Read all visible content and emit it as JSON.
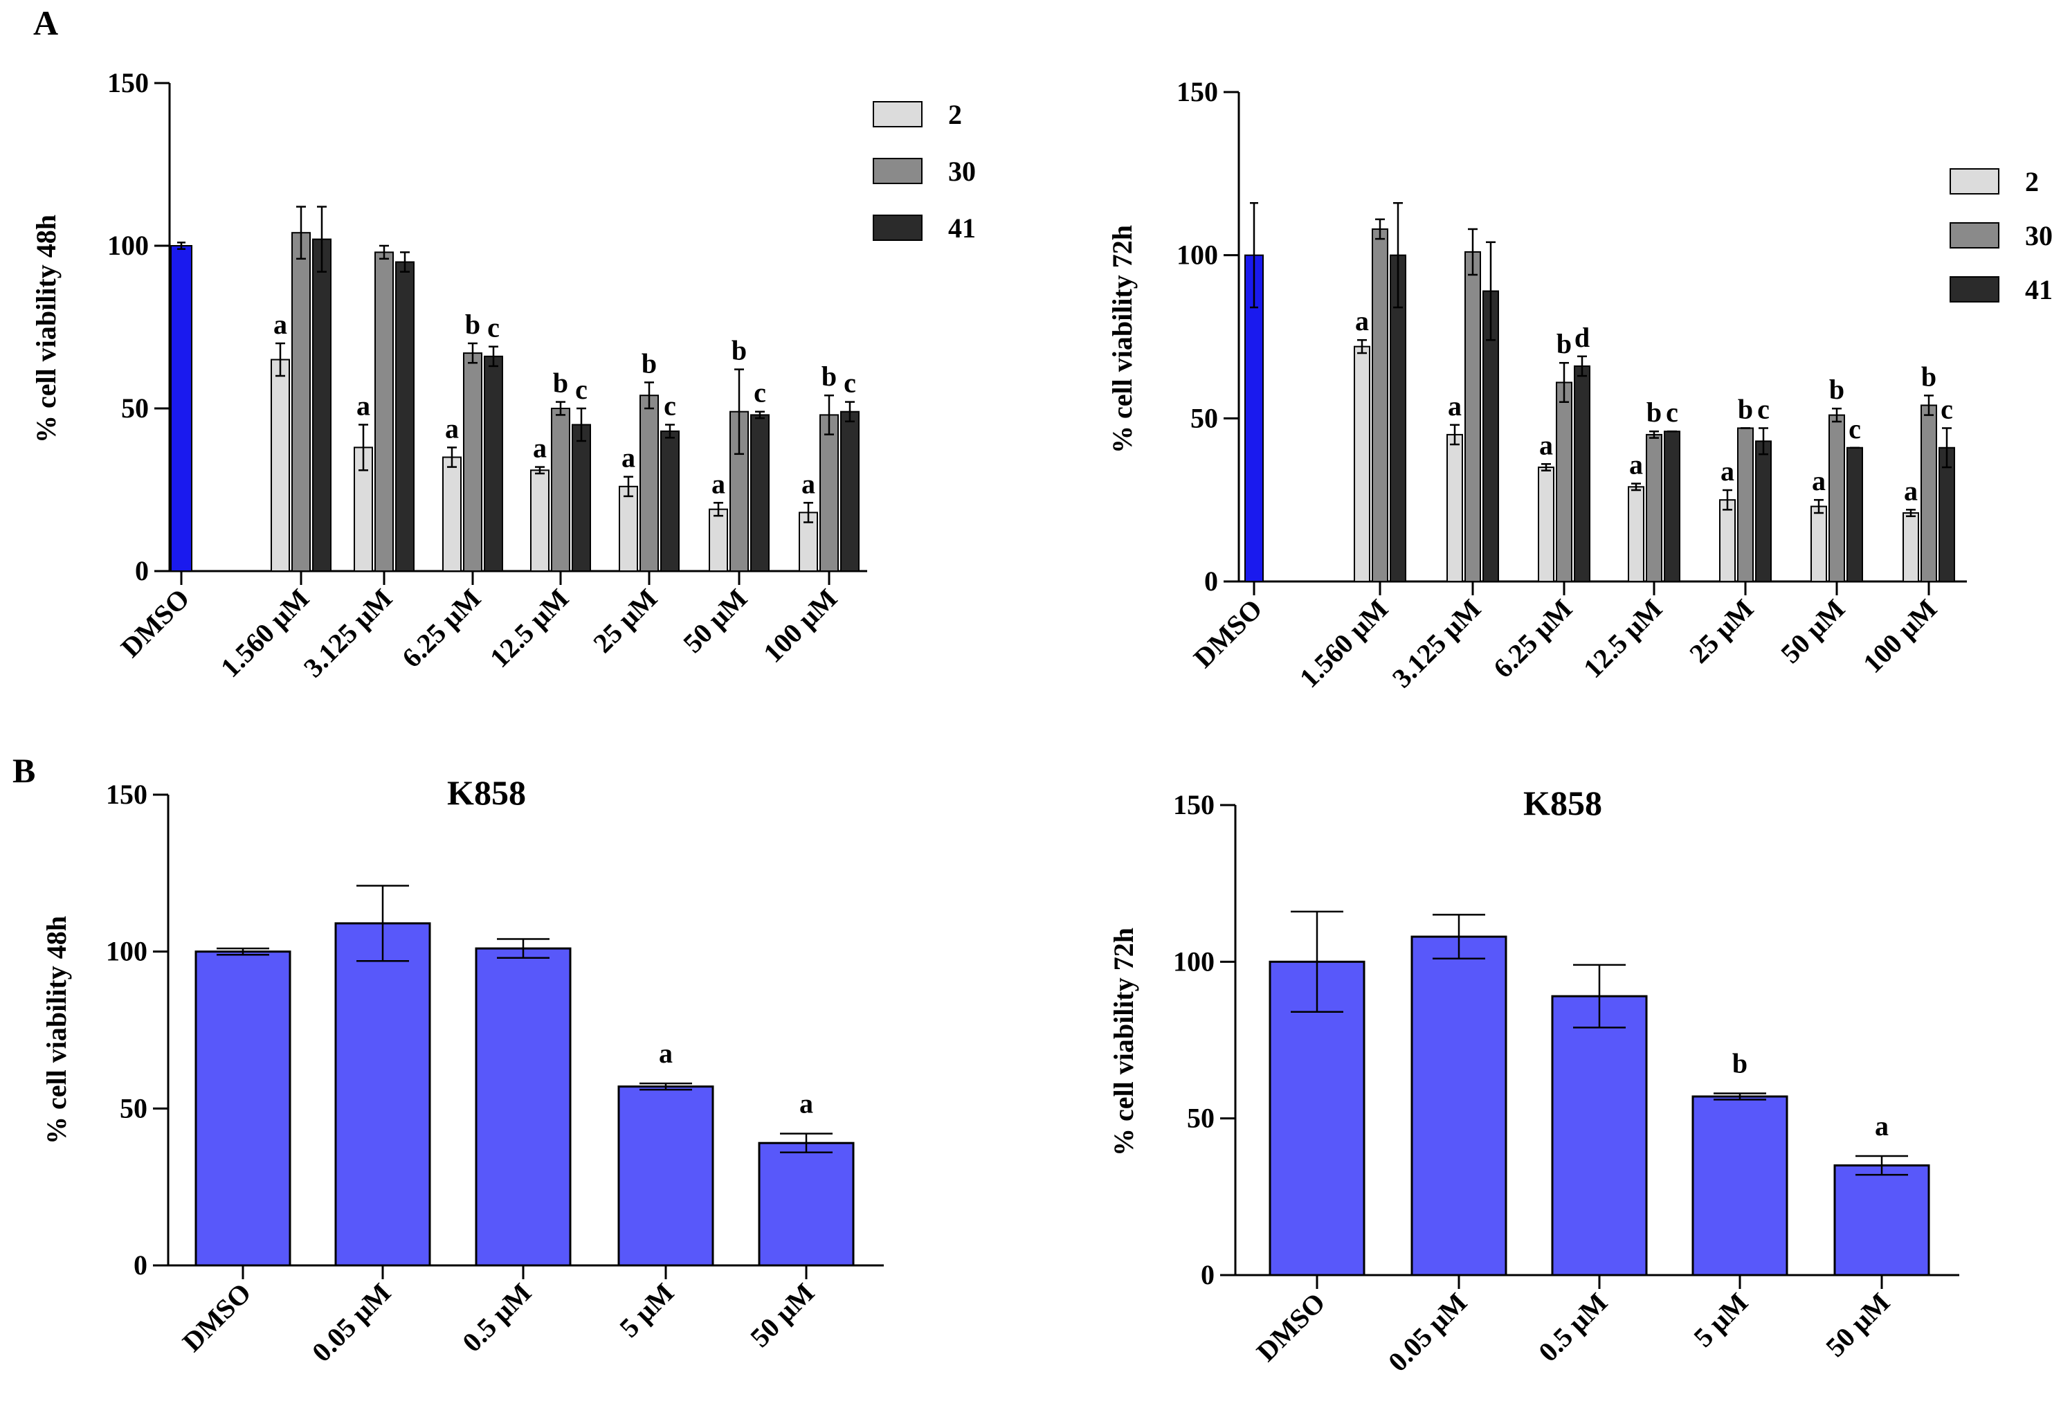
{
  "panel_labels": [
    "A",
    "B"
  ],
  "colors": {
    "dmso_blue": "#1a1aee",
    "k858_blue": "#5858fa",
    "light": "#dcdcdc",
    "medium": "#8a8a8a",
    "dark": "#2b2b2b",
    "axis": "#000000"
  },
  "chart_data": [
    {
      "type": "bar",
      "panel": "A",
      "ylabel": "% cell viability 48h",
      "ylim": [
        0,
        150
      ],
      "yticks": [
        "0",
        "50",
        "100",
        "150"
      ],
      "categories": [
        "DMSO",
        "1.560 µM",
        "3.125 µM",
        "6.25 µM",
        "12.5 µM",
        "25 µM",
        "50 µM",
        "100 µM"
      ],
      "control": {
        "name": "DMSO",
        "value": 100,
        "error": 1,
        "color": "#1a1aee"
      },
      "legend": {
        "position": "top-right",
        "entries": [
          "2",
          "30",
          "41"
        ]
      },
      "series": [
        {
          "name": "2",
          "color": "#dcdcdc",
          "values": [
            null,
            65,
            38,
            35,
            31,
            26,
            19,
            18
          ],
          "errors": [
            null,
            5,
            7,
            3,
            1,
            3,
            2,
            3
          ],
          "labels": [
            null,
            "a",
            "a",
            "a",
            "a",
            "a",
            "a",
            "a"
          ]
        },
        {
          "name": "30",
          "color": "#8a8a8a",
          "values": [
            null,
            104,
            98,
            67,
            50,
            54,
            49,
            48
          ],
          "errors": [
            null,
            8,
            2,
            3,
            2,
            4,
            13,
            6
          ],
          "labels": [
            null,
            "",
            "",
            "b",
            "b",
            "b",
            "b",
            "b"
          ]
        },
        {
          "name": "41",
          "color": "#2b2b2b",
          "values": [
            null,
            102,
            95,
            66,
            45,
            43,
            48,
            49
          ],
          "errors": [
            null,
            10,
            3,
            3,
            5,
            2,
            1,
            3
          ],
          "labels": [
            null,
            "",
            "",
            "c",
            "c",
            "c",
            "c",
            "c"
          ]
        }
      ]
    },
    {
      "type": "bar",
      "panel": "A",
      "ylabel": "% cell viability 72h",
      "ylim": [
        0,
        150
      ],
      "yticks": [
        "0",
        "50",
        "100",
        "150"
      ],
      "categories": [
        "DMSO",
        "1.560 µM",
        "3.125 µM",
        "6.25 µM",
        "12.5 µM",
        "25 µM",
        "50 µM",
        "100 µM"
      ],
      "control": {
        "name": "DMSO",
        "value": 100,
        "error": 16,
        "color": "#1a1aee"
      },
      "legend": {
        "position": "top-right",
        "entries": [
          "2",
          "30",
          "41"
        ]
      },
      "series": [
        {
          "name": "2",
          "color": "#dcdcdc",
          "values": [
            null,
            72,
            45,
            35,
            29,
            25,
            23,
            21
          ],
          "errors": [
            null,
            2,
            3,
            1,
            1,
            3,
            2,
            1
          ],
          "labels": [
            null,
            "a",
            "a",
            "a",
            "a",
            "a",
            "a",
            "a"
          ]
        },
        {
          "name": "30",
          "color": "#8a8a8a",
          "values": [
            null,
            108,
            101,
            61,
            45,
            47,
            51,
            54
          ],
          "errors": [
            null,
            3,
            7,
            6,
            1,
            0,
            2,
            3
          ],
          "labels": [
            null,
            "",
            "",
            "b",
            "b",
            "b",
            "b",
            "b"
          ]
        },
        {
          "name": "41",
          "color": "#2b2b2b",
          "values": [
            null,
            100,
            89,
            66,
            46,
            43,
            41,
            41
          ],
          "errors": [
            null,
            16,
            15,
            3,
            0,
            4,
            0,
            6
          ],
          "labels": [
            null,
            "",
            "",
            "d",
            "c",
            "c",
            "c",
            "c"
          ]
        }
      ]
    },
    {
      "type": "bar",
      "panel": "B",
      "title": "K858",
      "ylabel": "% cell viability 48h",
      "ylim": [
        0,
        150
      ],
      "yticks": [
        "0",
        "50",
        "100",
        "150"
      ],
      "categories": [
        "DMSO",
        "0.05 µM",
        "0.5 µM",
        "5 µM",
        "50 µM"
      ],
      "values": [
        100,
        109,
        101,
        57,
        39
      ],
      "errors": [
        1,
        12,
        3,
        1,
        3
      ],
      "labels": [
        "",
        "",
        "",
        "a",
        "a"
      ],
      "color": "#5858fa"
    },
    {
      "type": "bar",
      "panel": "B",
      "title": "K858",
      "ylabel": "% cell viability 72h",
      "ylim": [
        0,
        150
      ],
      "yticks": [
        "0",
        "50",
        "100",
        "150"
      ],
      "categories": [
        "DMSO",
        "0.05 µM",
        "0.5 µM",
        "5 µM",
        "50 µM"
      ],
      "values": [
        100,
        108,
        89,
        57,
        35
      ],
      "errors": [
        16,
        7,
        10,
        1,
        3
      ],
      "labels": [
        "",
        "",
        "",
        "b",
        "a"
      ],
      "color": "#5858fa"
    }
  ]
}
